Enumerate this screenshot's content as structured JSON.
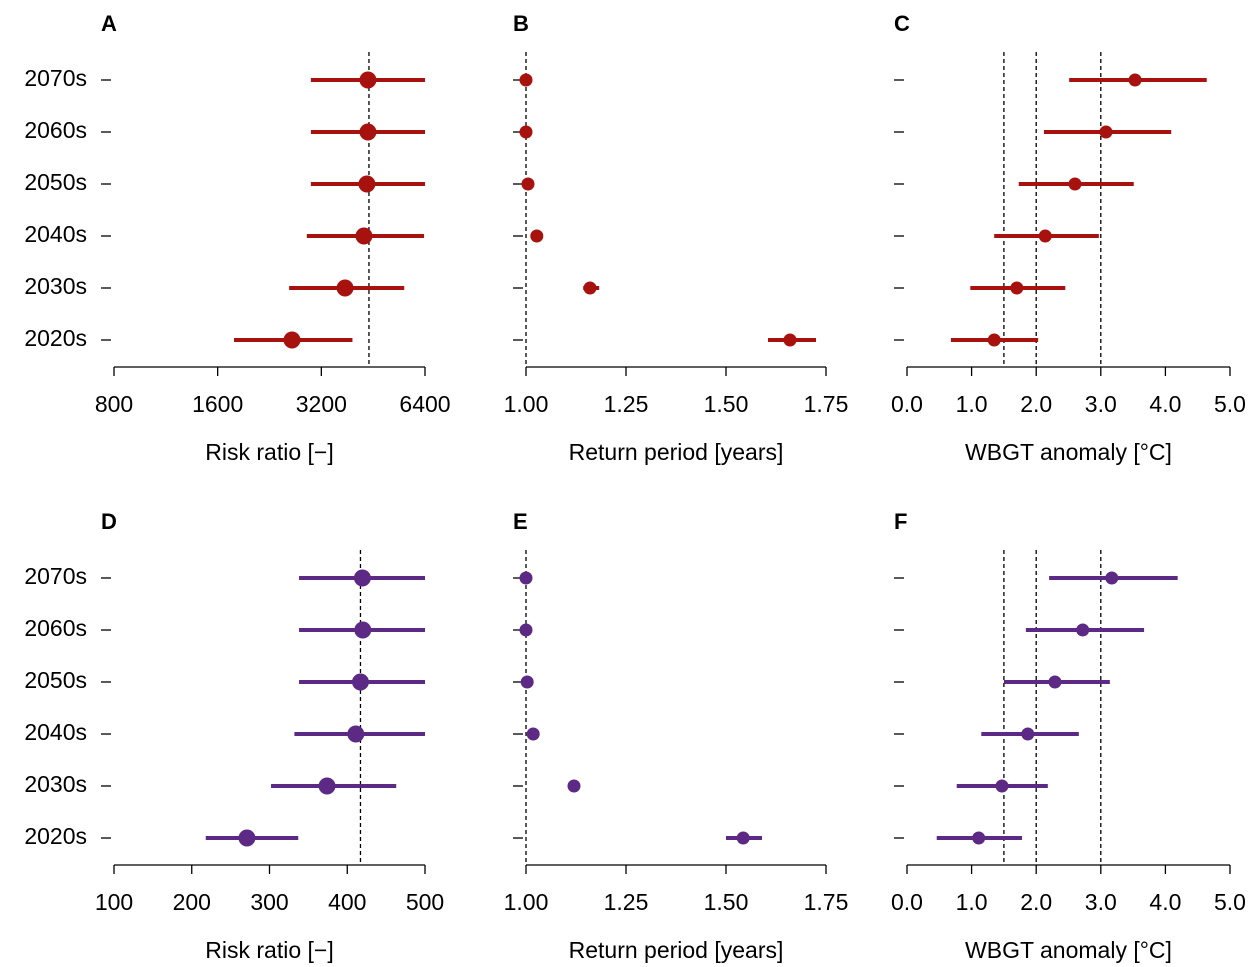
{
  "categories": [
    "2070s",
    "2060s",
    "2050s",
    "2040s",
    "2030s",
    "2020s"
  ],
  "chart_data": [
    {
      "type": "dotinterval",
      "panel": "A",
      "xlabel": "Risk ratio [−]",
      "log": true,
      "color": "#a8120e",
      "xlim": [
        800,
        6400
      ],
      "xticks": [
        800,
        1600,
        3200,
        6400
      ],
      "ref_lines": [
        4400
      ],
      "values": [
        4370,
        4370,
        4340,
        4255,
        3750,
        2630
      ],
      "lower": [
        2985,
        2985,
        2985,
        2904,
        2580,
        1785
      ],
      "upper": [
        6490,
        6490,
        6490,
        6360,
        5570,
        3940
      ]
    },
    {
      "type": "dotinterval",
      "panel": "B",
      "xlabel": "Return period [years]",
      "log": false,
      "color": "#a8120e",
      "xlim": [
        1,
        1.75
      ],
      "xticks": [
        {
          "value": 1,
          "label": "1.00"
        },
        1.25,
        {
          "value": 1.5,
          "label": "1.50"
        },
        1.75
      ],
      "ref_lines": [
        1
      ],
      "values": [
        1.0,
        1.0,
        1.005,
        1.027,
        1.16,
        1.66
      ],
      "lower": [
        1.0,
        1.0,
        1.003,
        1.025,
        1.143,
        1.605
      ],
      "upper": [
        1.002,
        1.002,
        1.007,
        1.03,
        1.183,
        1.725
      ]
    },
    {
      "type": "dotinterval",
      "panel": "C",
      "xlabel": "WBGT anomaly [°C]",
      "log": false,
      "color": "#a8120e",
      "xlim": [
        0,
        5
      ],
      "xticks": [
        {
          "value": 0,
          "label": "0.0"
        },
        {
          "value": 1,
          "label": "1.0"
        },
        {
          "value": 2,
          "label": "2.0"
        },
        {
          "value": 3,
          "label": "3.0"
        },
        {
          "value": 4,
          "label": "4.0"
        },
        {
          "value": 5,
          "label": "5.0"
        }
      ],
      "ref_lines": [
        1.5,
        2,
        3
      ],
      "values": [
        3.53,
        3.08,
        2.6,
        2.14,
        1.7,
        1.35
      ],
      "lower": [
        2.51,
        2.12,
        1.73,
        1.35,
        0.98,
        0.68
      ],
      "upper": [
        4.64,
        4.09,
        3.51,
        2.97,
        2.45,
        2.03
      ]
    },
    {
      "type": "dotinterval",
      "panel": "D",
      "xlabel": "Risk ratio [−]",
      "log": false,
      "color": "#5c2a84",
      "xlim": [
        100,
        500
      ],
      "xticks": [
        100,
        200,
        300,
        400,
        500
      ],
      "ref_lines": [
        417
      ],
      "values": [
        419.5,
        420,
        417,
        411,
        374,
        271
      ],
      "lower": [
        338,
        338,
        338,
        332,
        302,
        218
      ],
      "upper": [
        500,
        500,
        500,
        500,
        463,
        337
      ]
    },
    {
      "type": "dotinterval",
      "panel": "E",
      "xlabel": "Return period [years]",
      "log": false,
      "color": "#5c2a84",
      "xlim": [
        1,
        1.75
      ],
      "xticks": [
        {
          "value": 1,
          "label": "1.00"
        },
        1.25,
        {
          "value": 1.5,
          "label": "1.50"
        },
        1.75
      ],
      "ref_lines": [
        1
      ],
      "values": [
        1.0,
        1.0,
        1.003,
        1.018,
        1.12,
        1.543
      ],
      "lower": [
        1.0,
        1.0,
        1.001,
        1.016,
        1.115,
        1.5
      ],
      "upper": [
        1.002,
        1.002,
        1.005,
        1.02,
        1.125,
        1.59
      ]
    },
    {
      "type": "dotinterval",
      "panel": "F",
      "xlabel": "WBGT anomaly [°C]",
      "log": false,
      "color": "#5c2a84",
      "xlim": [
        0,
        5
      ],
      "xticks": [
        {
          "value": 0,
          "label": "0.0"
        },
        {
          "value": 1,
          "label": "1.0"
        },
        {
          "value": 2,
          "label": "2.0"
        },
        {
          "value": 3,
          "label": "3.0"
        },
        {
          "value": 4,
          "label": "4.0"
        },
        {
          "value": 5,
          "label": "5.0"
        }
      ],
      "ref_lines": [
        1.5,
        2,
        3
      ],
      "values": [
        3.17,
        2.72,
        2.29,
        1.87,
        1.47,
        1.11
      ],
      "lower": [
        2.2,
        1.84,
        1.5,
        1.15,
        0.77,
        0.46
      ],
      "upper": [
        4.19,
        3.67,
        3.14,
        2.66,
        2.18,
        1.78
      ]
    }
  ]
}
